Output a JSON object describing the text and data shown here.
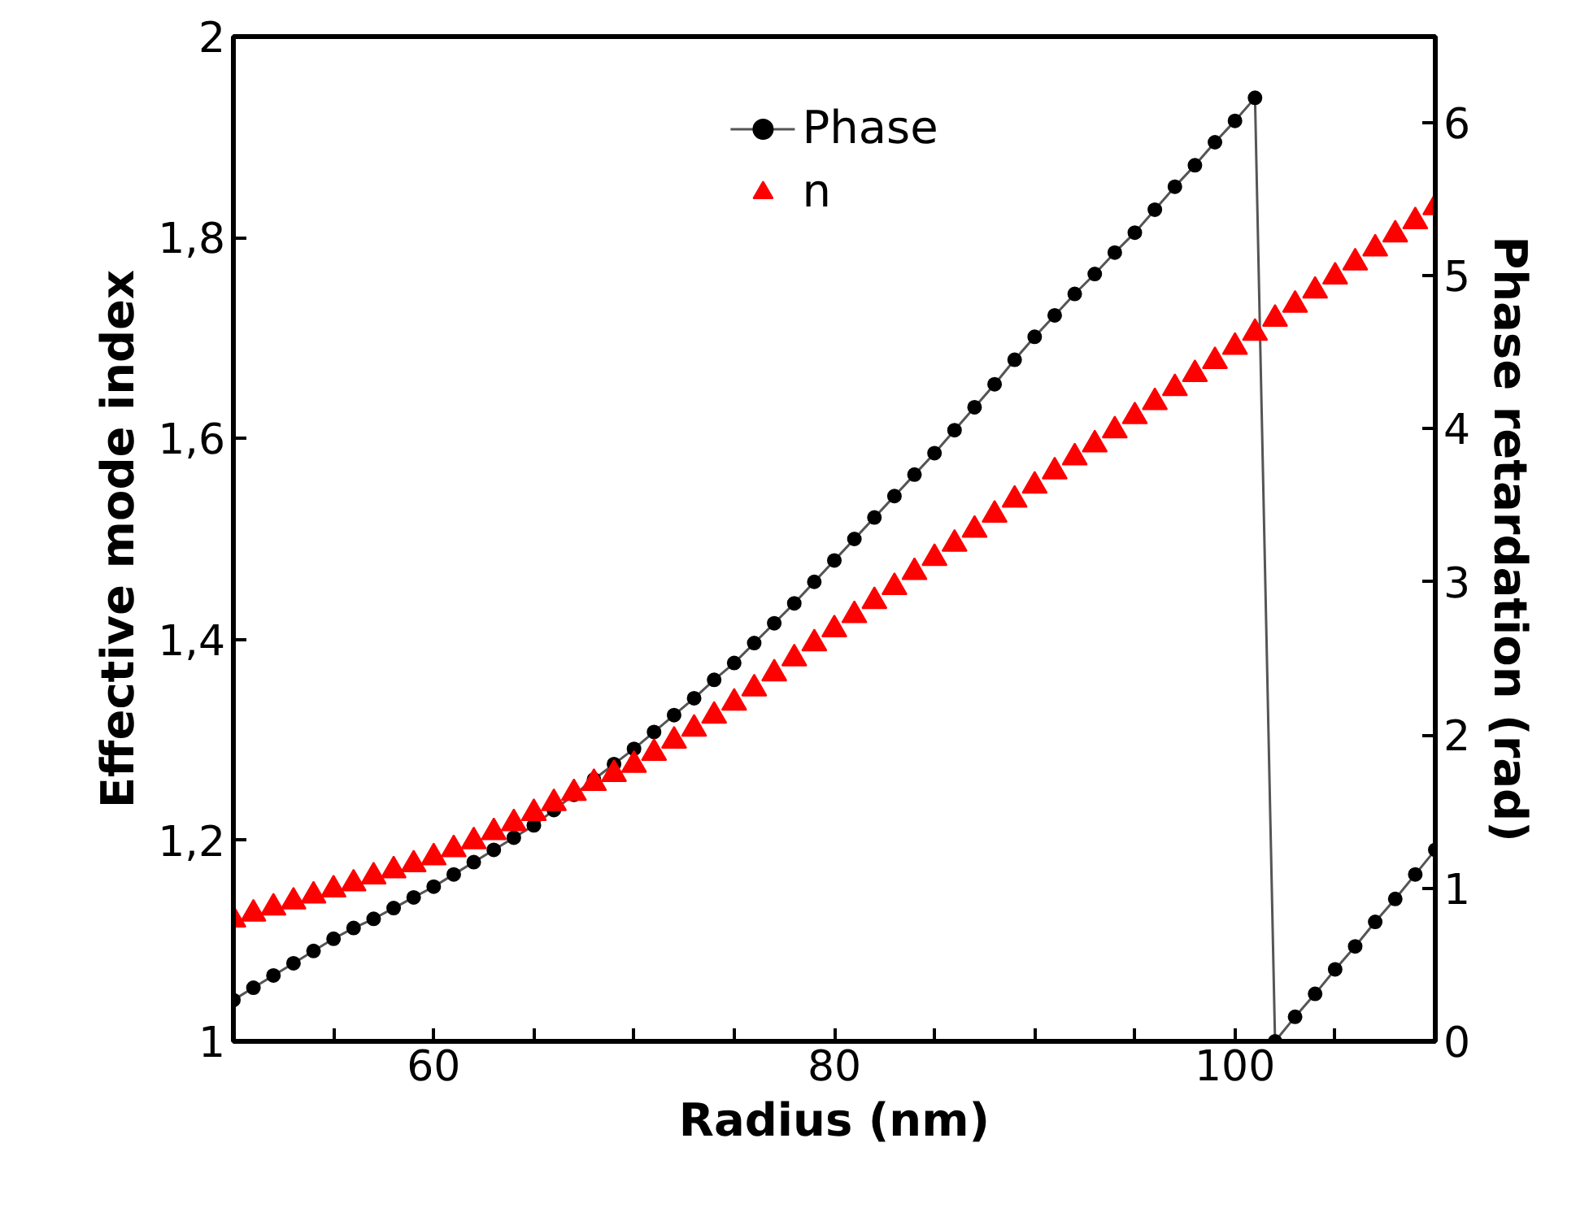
{
  "chart_data": {
    "type": "line",
    "xlabel": "Radius (nm)",
    "ylabel": "Effective mode index",
    "y2label": "Phase retardation (rad)",
    "xlim": [
      50,
      110
    ],
    "xticks": [
      {
        "value": 55,
        "label": null
      },
      60,
      {
        "value": 65,
        "label": null
      },
      {
        "value": 70,
        "label": null
      },
      {
        "value": 75,
        "label": null
      },
      80,
      {
        "value": 85,
        "label": null
      },
      {
        "value": 90,
        "label": null
      },
      {
        "value": 95,
        "label": null
      },
      100,
      {
        "value": 105,
        "label": null
      }
    ],
    "ylim": [
      1,
      2
    ],
    "yticks": [
      1,
      {
        "value": 1.2,
        "label": "1,2"
      },
      {
        "value": 1.4,
        "label": "1,4"
      },
      {
        "value": 1.6,
        "label": "1,6"
      },
      {
        "value": 1.8,
        "label": "1,8"
      },
      2
    ],
    "y2lim": [
      0,
      6.56
    ],
    "y2ticks": [
      0,
      1,
      2,
      3,
      4,
      5,
      6
    ],
    "grid": false,
    "legend": "top",
    "series": [
      {
        "name": "Phase",
        "axis": "y2",
        "marker": "circle",
        "color": "#000000",
        "x": [
          50,
          51,
          52,
          53,
          54,
          55,
          56,
          57,
          58,
          59,
          60,
          61,
          62,
          63,
          64,
          65,
          66,
          67,
          68,
          69,
          70,
          71,
          72,
          73,
          74,
          75,
          76,
          77,
          78,
          79,
          80,
          81,
          82,
          83,
          84,
          85,
          86,
          87,
          88,
          89,
          90,
          91,
          92,
          93,
          94,
          95,
          96,
          97,
          98,
          99,
          100,
          101,
          102,
          103,
          104,
          105,
          106,
          107,
          108,
          109,
          110
        ],
        "values": [
          0.27,
          0.35,
          0.43,
          0.51,
          0.59,
          0.67,
          0.74,
          0.8,
          0.87,
          0.94,
          1.01,
          1.09,
          1.17,
          1.25,
          1.33,
          1.41,
          1.51,
          1.61,
          1.71,
          1.81,
          1.91,
          2.02,
          2.13,
          2.24,
          2.36,
          2.47,
          2.6,
          2.73,
          2.86,
          3.0,
          3.14,
          3.28,
          3.42,
          3.56,
          3.7,
          3.84,
          3.99,
          4.14,
          4.29,
          4.45,
          4.6,
          4.74,
          4.88,
          5.01,
          5.15,
          5.28,
          5.43,
          5.58,
          5.72,
          5.87,
          6.01,
          6.16,
          0,
          0.16,
          0.31,
          0.47,
          0.62,
          0.78,
          0.93,
          1.09,
          1.25
        ]
      },
      {
        "name": "n",
        "type": "scatter",
        "marker": "triangle",
        "color": "#ff0000",
        "x": [
          50,
          51,
          52,
          53,
          54,
          55,
          56,
          57,
          58,
          59,
          60,
          61,
          62,
          63,
          64,
          65,
          66,
          67,
          68,
          69,
          70,
          71,
          72,
          73,
          74,
          75,
          76,
          77,
          78,
          79,
          80,
          81,
          82,
          83,
          84,
          85,
          86,
          87,
          88,
          89,
          90,
          91,
          92,
          93,
          94,
          95,
          96,
          97,
          98,
          99,
          100,
          101,
          102,
          103,
          104,
          105,
          106,
          107,
          108,
          109,
          110
        ],
        "values": [
          1.121,
          1.127,
          1.133,
          1.139,
          1.145,
          1.151,
          1.157,
          1.164,
          1.17,
          1.176,
          1.183,
          1.191,
          1.199,
          1.208,
          1.217,
          1.227,
          1.237,
          1.247,
          1.257,
          1.266,
          1.275,
          1.287,
          1.299,
          1.311,
          1.324,
          1.337,
          1.351,
          1.366,
          1.381,
          1.396,
          1.41,
          1.424,
          1.438,
          1.452,
          1.467,
          1.481,
          1.495,
          1.509,
          1.524,
          1.539,
          1.553,
          1.567,
          1.581,
          1.594,
          1.608,
          1.622,
          1.636,
          1.65,
          1.664,
          1.677,
          1.691,
          1.705,
          1.719,
          1.733,
          1.747,
          1.761,
          1.775,
          1.789,
          1.803,
          1.816,
          1.83
        ]
      }
    ]
  }
}
